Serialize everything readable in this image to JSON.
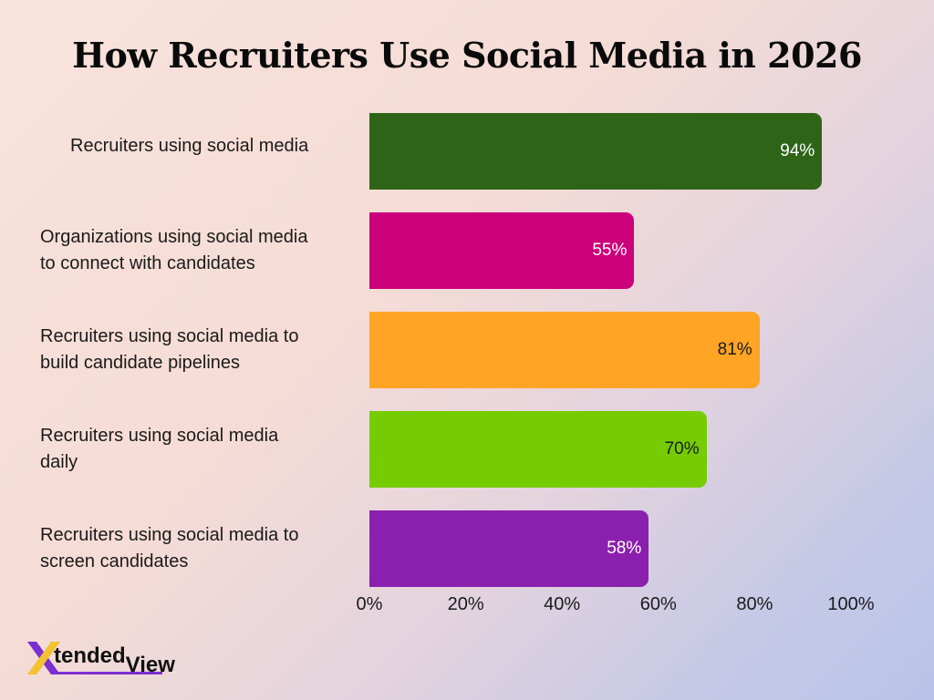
{
  "title": "How Recruiters Use Social Media in 2026",
  "chart_data": {
    "type": "bar",
    "orientation": "horizontal",
    "title": "How Recruiters Use Social Media in 2026",
    "categories": [
      "Recruiters using social media",
      "Organizations using social media to connect with candidates",
      "Recruiters using social media to build candidate pipelines",
      "Recruiters using social media daily",
      "Recruiters using social media to screen candidates"
    ],
    "label_lines": [
      [
        "Recruiters using social media"
      ],
      [
        "Organizations using social media",
        "to connect with candidates"
      ],
      [
        "Recruiters using social media to",
        "build candidate pipelines"
      ],
      [
        "Recruiters using social media",
        "daily"
      ],
      [
        "Recruiters using social media to",
        "screen candidates"
      ]
    ],
    "values": [
      94,
      55,
      81,
      70,
      58
    ],
    "value_labels": [
      "94%",
      "55%",
      "81%",
      "70%",
      "58%"
    ],
    "colors": [
      "#2e6418",
      "#cc007a",
      "#ffa424",
      "#76cc02",
      "#8c20ae"
    ],
    "value_label_colors": [
      "#ffffff",
      "#ffffff",
      "#1a1a1a",
      "#1a1a1a",
      "#ffffff"
    ],
    "xlim": [
      0,
      100
    ],
    "xticks": [
      0,
      20,
      40,
      60,
      80,
      100
    ],
    "xtick_labels": [
      "0%",
      "20%",
      "40%",
      "60%",
      "80%",
      "100%"
    ],
    "grid": false,
    "legend": "none"
  },
  "logo": {
    "brand_x": "X",
    "brand_text": "tended",
    "brand_view": "View",
    "colors": [
      "#7b2fd0",
      "#f2c230"
    ]
  }
}
